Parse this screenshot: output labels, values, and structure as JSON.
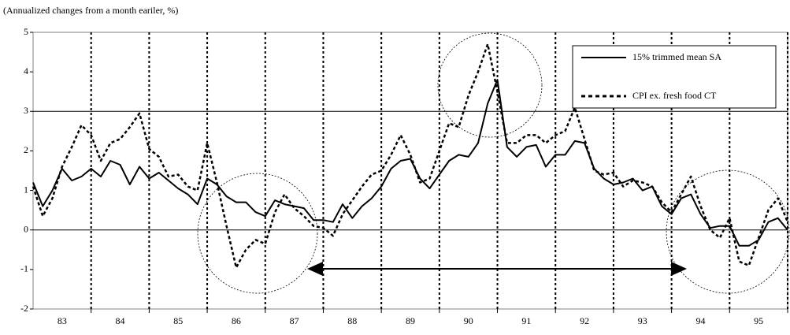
{
  "chart_data": {
    "type": "line",
    "subtitle": "(Annualized changes from a month eariler, %)",
    "x": [
      83,
      83.167,
      83.333,
      83.5,
      83.667,
      83.833,
      84,
      84.167,
      84.333,
      84.5,
      84.667,
      84.833,
      85,
      85.167,
      85.333,
      85.5,
      85.667,
      85.833,
      86,
      86.167,
      86.333,
      86.5,
      86.667,
      86.833,
      87,
      87.167,
      87.333,
      87.5,
      87.667,
      87.833,
      88,
      88.167,
      88.333,
      88.5,
      88.667,
      88.833,
      89,
      89.167,
      89.333,
      89.5,
      89.667,
      89.833,
      90,
      90.167,
      90.333,
      90.5,
      90.667,
      90.833,
      91,
      91.167,
      91.333,
      91.5,
      91.667,
      91.833,
      92,
      92.167,
      92.333,
      92.5,
      92.667,
      92.833,
      93,
      93.167,
      93.333,
      93.5,
      93.667,
      93.833,
      94,
      94.167,
      94.333,
      94.5,
      94.667,
      94.833,
      95,
      95.167,
      95.333,
      95.5,
      95.667,
      95.833,
      96
    ],
    "series": [
      {
        "name": "15% trimmed mean SA",
        "color": "#000000",
        "style": "solid",
        "values": [
          1.2,
          0.6,
          1.0,
          1.55,
          1.25,
          1.35,
          1.55,
          1.35,
          1.75,
          1.65,
          1.15,
          1.6,
          1.3,
          1.45,
          1.25,
          1.05,
          0.9,
          0.65,
          1.3,
          1.15,
          0.85,
          0.7,
          0.7,
          0.45,
          0.35,
          0.75,
          0.65,
          0.6,
          0.55,
          0.25,
          0.25,
          0.2,
          0.65,
          0.3,
          0.6,
          0.8,
          1.1,
          1.55,
          1.75,
          1.8,
          1.3,
          1.05,
          1.4,
          1.75,
          1.9,
          1.85,
          2.2,
          3.2,
          3.8,
          2.1,
          1.85,
          2.1,
          2.15,
          1.6,
          1.9,
          1.9,
          2.25,
          2.2,
          1.55,
          1.3,
          1.15,
          1.2,
          1.3,
          1.0,
          1.1,
          0.6,
          0.4,
          0.8,
          0.9,
          0.4,
          0.05,
          0.1,
          0.1,
          -0.4,
          -0.4,
          -0.25,
          0.2,
          0.3,
          0.0
        ]
      },
      {
        "name": "CPI ex. fresh food CT",
        "color": "#000000",
        "style": "dotted",
        "values": [
          1.1,
          0.35,
          0.8,
          1.6,
          2.1,
          2.65,
          2.4,
          1.75,
          2.2,
          2.3,
          2.6,
          2.95,
          2.05,
          1.85,
          1.35,
          1.4,
          1.1,
          1.0,
          2.2,
          1.2,
          0.1,
          -0.95,
          -0.5,
          -0.25,
          -0.35,
          0.45,
          0.9,
          0.55,
          0.35,
          0.1,
          0.05,
          -0.15,
          0.4,
          0.75,
          1.1,
          1.4,
          1.5,
          1.9,
          2.4,
          1.9,
          1.2,
          1.3,
          2.0,
          2.7,
          2.6,
          3.4,
          4.0,
          4.7,
          3.5,
          2.2,
          2.2,
          2.4,
          2.4,
          2.2,
          2.4,
          2.5,
          3.1,
          2.3,
          1.5,
          1.4,
          1.45,
          1.1,
          1.25,
          1.2,
          1.1,
          0.7,
          0.45,
          0.9,
          1.35,
          0.6,
          0.0,
          -0.2,
          0.3,
          -0.8,
          -0.9,
          -0.2,
          0.5,
          0.8,
          0.2
        ]
      }
    ],
    "xlim": [
      83,
      96
    ],
    "xticks": [
      {
        "value": 83.5,
        "label": "83"
      },
      {
        "value": 84.5,
        "label": "84"
      },
      {
        "value": 85.5,
        "label": "85"
      },
      {
        "value": 86.5,
        "label": "86"
      },
      {
        "value": 87.5,
        "label": "87"
      },
      {
        "value": 88.5,
        "label": "88"
      },
      {
        "value": 89.5,
        "label": "89"
      },
      {
        "value": 90.5,
        "label": "90"
      },
      {
        "value": 91.5,
        "label": "91"
      },
      {
        "value": 92.5,
        "label": "92"
      },
      {
        "value": 93.5,
        "label": "93"
      },
      {
        "value": 94.5,
        "label": "94"
      },
      {
        "value": 95.5,
        "label": "95"
      }
    ],
    "ylim": [
      -2,
      5
    ],
    "yticks": [
      -2,
      -1,
      0,
      1,
      2,
      3,
      4,
      5
    ],
    "reference_lines": [
      0,
      3
    ],
    "legend": "top-right"
  }
}
